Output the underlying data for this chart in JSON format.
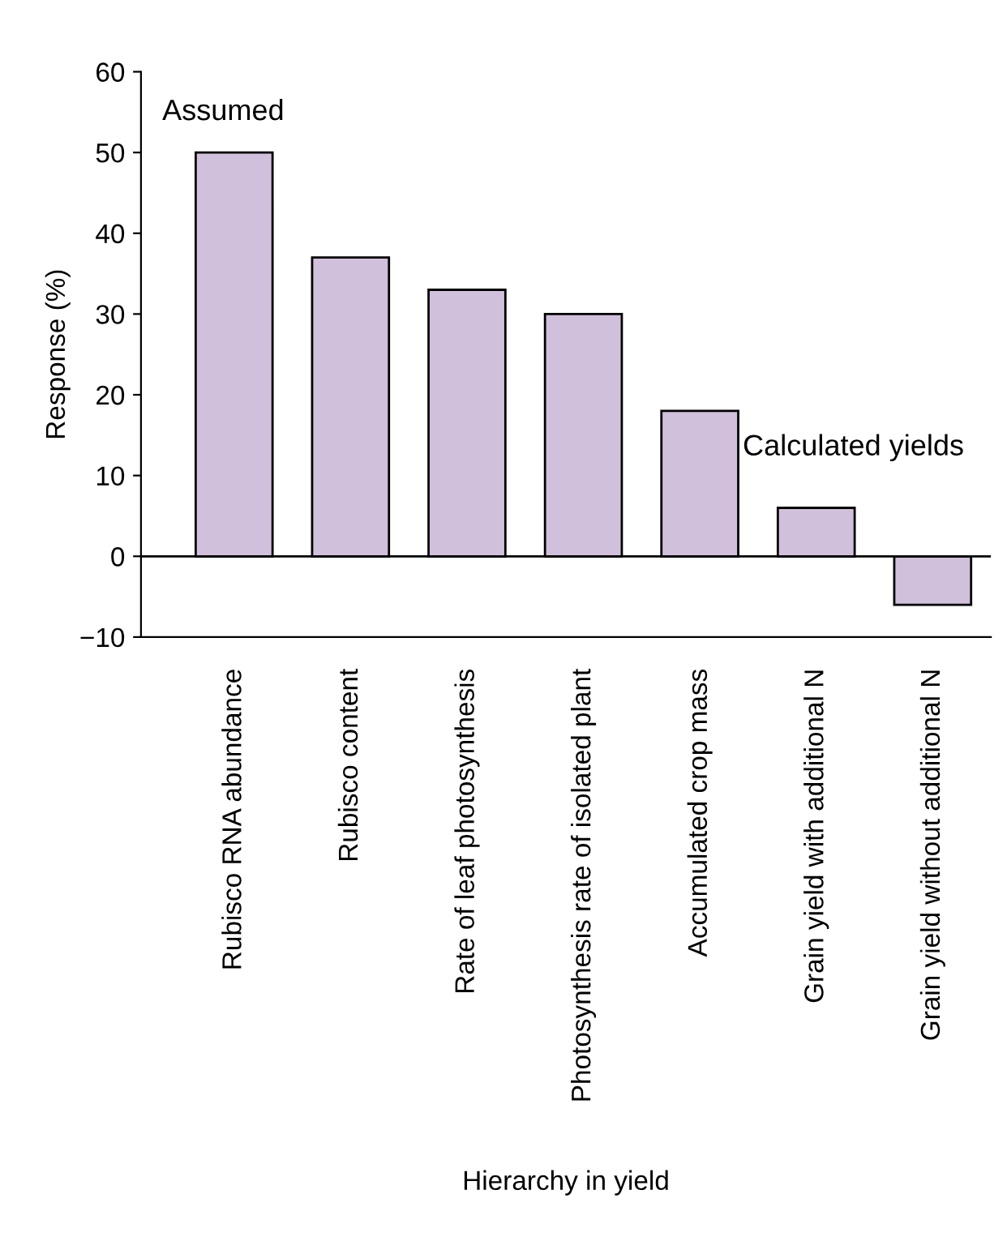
{
  "chart_data": {
    "type": "bar",
    "xlabel": "Hierarchy in yield",
    "ylabel": "Response (%)",
    "categories": [
      "Rubisco RNA abundance",
      "Rubisco content",
      "Rate of leaf photosynthesis",
      "Photosynthesis rate of isolated plant",
      "Accumulated crop mass",
      "Grain yield with additional N",
      "Grain yield without additional N"
    ],
    "values": [
      50,
      37,
      33,
      30,
      18,
      6,
      -6
    ],
    "color": "#d1c0db",
    "ylim": [
      -10,
      60
    ],
    "yticks": [
      {
        "value": -10,
        "label": "−10"
      },
      0,
      10,
      20,
      30,
      40,
      50,
      60
    ],
    "grid": false,
    "legend": false,
    "ref_lines": [
      {
        "axis": "y",
        "value": 0
      }
    ],
    "annotations": [
      "Assumed",
      "Calculated yields"
    ]
  }
}
